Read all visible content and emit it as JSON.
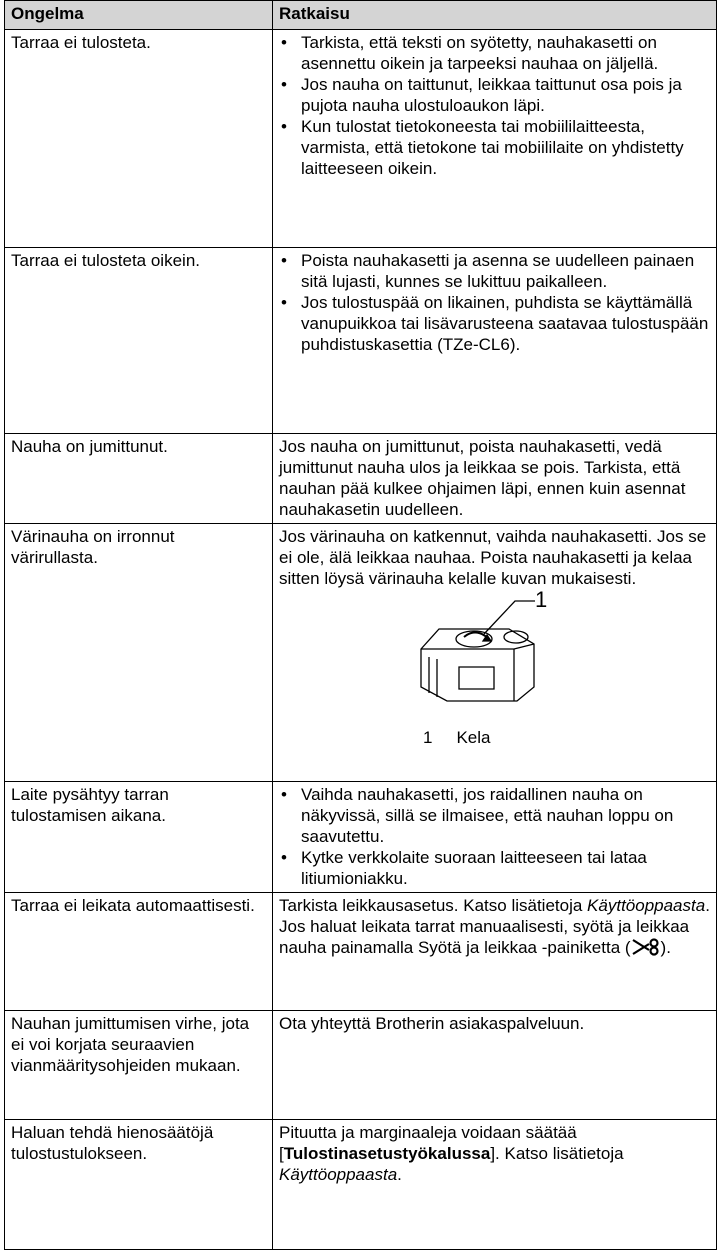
{
  "table": {
    "header": [
      "Ongelma",
      "Ratkaisu"
    ],
    "rows": [
      {
        "problem": "Tarraa ei tulosteta.",
        "bullets": [
          "Tarkista, että teksti on syötetty, nauhakasetti on asennettu oikein ja tarpeeksi nauhaa on jäljellä.",
          "Jos nauha on taittunut, leikkaa taittunut osa pois ja pujota nauha ulostuloaukon läpi.",
          "Kun tulostat tietokoneesta tai mobiililaitteesta, varmista, että tietokone tai mobiililaite on yhdistetty laitteeseen oikein."
        ]
      },
      {
        "problem": "Tarraa ei tulosteta oikein.",
        "bullets": [
          "Poista nauhakasetti ja asenna se uudelleen painaen sitä lujasti, kunnes se lukittuu paikalleen.",
          "Jos tulostuspää on likainen, puhdista se käyttämällä vanupuikkoa tai lisävarusteena saatavaa tulostuspään puhdistuskasettia (TZe-CL6)."
        ]
      },
      {
        "problem": "Nauha on jumittunut.",
        "text": "Jos nauha on jumittunut, poista nauhakasetti, vedä jumittunut nauha ulos ja leikkaa se pois. Tarkista, että nauhan pää kulkee ohjaimen läpi, ennen kuin asennat nauhakasetin uudelleen."
      },
      {
        "problem": "Värinauha on irronnut värirullasta.",
        "text": "Jos värinauha on katkennut, vaihda nauhakasetti. Jos se ei ole, älä leikkaa nauhaa. Poista nauhakasetti ja kelaa sitten löysä värinauha kelalle kuvan mukaisesti.",
        "figure": {
          "callout": "1",
          "caption_number": "1",
          "caption": "Kela"
        }
      },
      {
        "problem": "Laite pysähtyy tarran tulostamisen aikana.",
        "bullets": [
          "Vaihda nauhakasetti, jos raidallinen nauha on näkyvissä, sillä se ilmaisee, että nauhan loppu on saavutettu.",
          "Kytke verkkolaite suoraan laitteeseen tai lataa litiumioniakku."
        ]
      },
      {
        "problem": "Tarraa ei leikata automaattisesti.",
        "paragraphs": [
          [
            "Tarkista leikkausasetus. Katso lisätietoja ",
            "Käyttöoppaasta",
            "."
          ],
          [
            "Jos haluat leikata tarrat manuaalisesti, syötä ja leikkaa nauha painamalla Syötä ja leikkaa -painiketta (",
            ")."
          ]
        ]
      },
      {
        "problem": "Nauhan jumittumisen virhe, jota ei voi korjata seuraavien vianmääritysohjeiden mukaan.",
        "text": "Ota yhteyttä Brotherin asiakaspalveluun."
      },
      {
        "problem": "Haluan tehdä hienosäätöjä tulostustulokseen.",
        "paragraphs": [
          [
            "Pituutta ja marginaaleja voidaan säätää [",
            "Tulostinasetustyökalussa",
            "]. Katso lisätietoja ",
            "Käyttöoppaasta",
            "."
          ]
        ]
      }
    ]
  }
}
